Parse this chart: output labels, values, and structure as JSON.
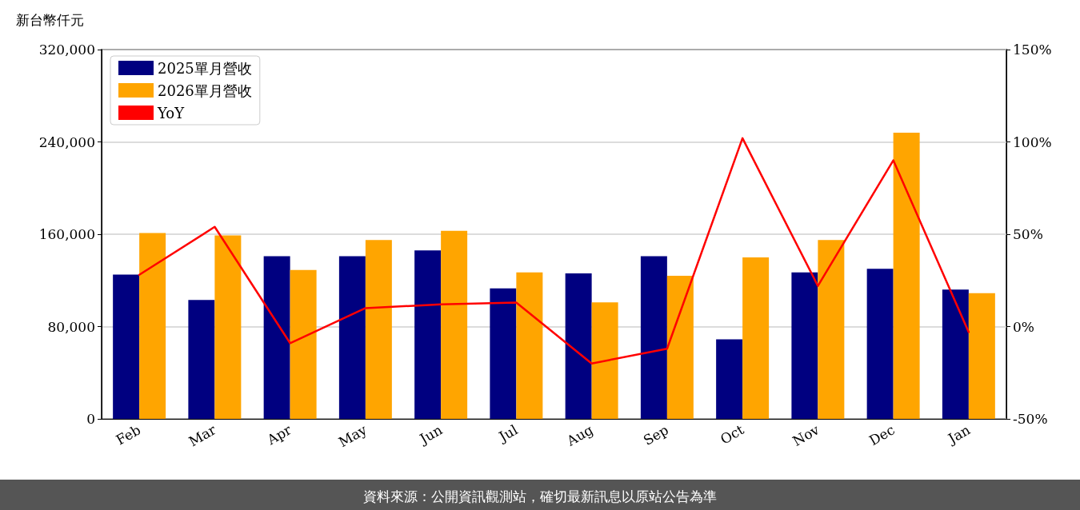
{
  "chart_data": {
    "type": "bar",
    "ylabel": "新台幣仟元",
    "categories": [
      "Feb",
      "Mar",
      "Apr",
      "May",
      "Jun",
      "Jul",
      "Aug",
      "Sep",
      "Oct",
      "Nov",
      "Dec",
      "Jan"
    ],
    "series": [
      {
        "name": "2025單月營收",
        "color": "#000080",
        "values": [
          125000,
          103000,
          141000,
          141000,
          146000,
          113000,
          126000,
          141000,
          69000,
          127000,
          130000,
          112000
        ]
      },
      {
        "name": "2026單月營收",
        "color": "#ffa500",
        "values": [
          161000,
          159000,
          129000,
          155000,
          163000,
          127000,
          101000,
          124000,
          140000,
          155000,
          248000,
          109000
        ]
      },
      {
        "name": "YoY",
        "type": "line",
        "axis": "y2",
        "color": "#ff0000",
        "marker": "none",
        "line_style": "solid",
        "values": [
          28,
          54,
          -9,
          10,
          12,
          13,
          -20,
          -12,
          102,
          22,
          90,
          -3
        ]
      }
    ],
    "ylim": [
      0,
      320000
    ],
    "yticks": [
      {
        "value": 0,
        "label": "0"
      },
      {
        "value": 80000,
        "label": "80,000"
      },
      {
        "value": 160000,
        "label": "160,000"
      },
      {
        "value": 240000,
        "label": "240,000"
      },
      {
        "value": 320000,
        "label": "320,000"
      }
    ],
    "y2lim": [
      -50,
      150
    ],
    "y2ticks": [
      {
        "value": -50,
        "label": "-50%"
      },
      {
        "value": 0,
        "label": "0%"
      },
      {
        "value": 50,
        "label": "50%"
      },
      {
        "value": 100,
        "label": "100%"
      },
      {
        "value": 150,
        "label": "150%"
      }
    ],
    "grid": "y",
    "legend": "top left",
    "annotations": [
      "資料來源：公開資訊觀測站，確切最新訊息以原站公告為準"
    ]
  }
}
